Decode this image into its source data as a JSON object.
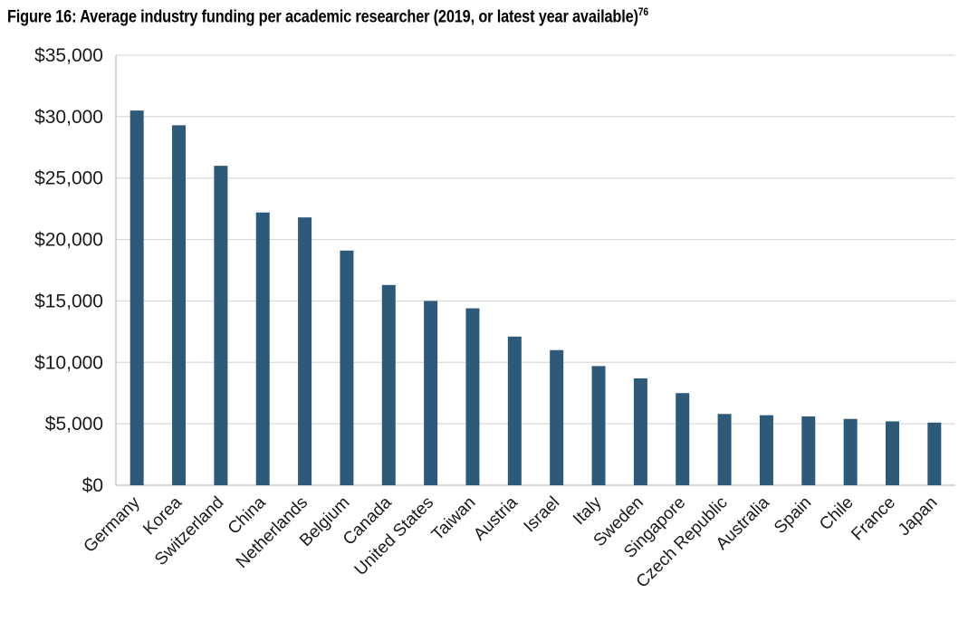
{
  "figure": {
    "title": "Figure 16: Average industry funding per academic researcher (2019, or latest year available)",
    "footnote": "76"
  },
  "colors": {
    "bar": "#2e5a7a",
    "grid": "#d9d9d9",
    "axis": "#bfbfbf"
  },
  "chart_data": {
    "type": "bar",
    "title": "Average industry funding per academic researcher (2019, or latest year available)",
    "xlabel": "",
    "ylabel": "",
    "ylim": [
      0,
      35000
    ],
    "yticks": [
      0,
      5000,
      10000,
      15000,
      20000,
      25000,
      30000,
      35000
    ],
    "ytick_labels": [
      "$0",
      "$5,000",
      "$10,000",
      "$15,000",
      "$20,000",
      "$25,000",
      "$30,000",
      "$35,000"
    ],
    "grid": true,
    "categories": [
      "Germany",
      "Korea",
      "Switzerland",
      "China",
      "Netherlands",
      "Belgium",
      "Canada",
      "United States",
      "Taiwan",
      "Austria",
      "Israel",
      "Italy",
      "Sweden",
      "Singapore",
      "Czech Republic",
      "Australia",
      "Spain",
      "Chile",
      "France",
      "Japan"
    ],
    "values": [
      30500,
      29300,
      26000,
      22200,
      21800,
      19100,
      16300,
      15000,
      14400,
      12100,
      11000,
      9700,
      8700,
      7500,
      5800,
      5700,
      5600,
      5400,
      5200,
      5100
    ]
  }
}
